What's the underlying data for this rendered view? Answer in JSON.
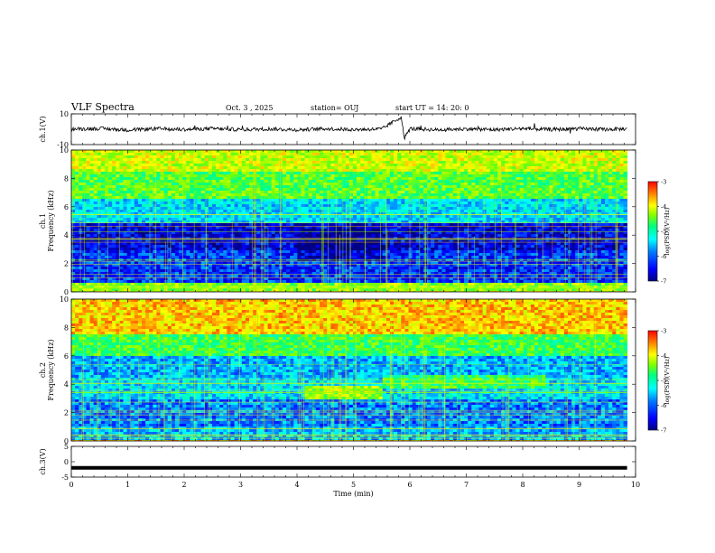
{
  "header": {
    "title": "VLF Spectra",
    "date": "Oct. 3 , 2025",
    "station": "station= OUJ",
    "start": "start UT = 14: 20: 0"
  },
  "chart_data": [
    {
      "type": "line",
      "id": "ch1-waveform",
      "ylabel": "ch.1(V)",
      "ylim": [
        -10,
        10
      ],
      "yticks": [
        "10",
        "-10"
      ],
      "xlim": [
        0,
        10
      ],
      "description_series": [
        {
          "x": [
            0,
            0.5,
            1,
            1.5,
            2,
            2.5,
            3,
            3.5,
            4,
            4.5,
            5,
            5.5,
            5.85,
            5.9,
            6,
            6.5,
            7,
            7.5,
            8,
            8.5,
            9,
            9.5,
            9.8
          ],
          "y": [
            0,
            0.5,
            -0.5,
            0.3,
            -0.2,
            0.4,
            -0.3,
            0.2,
            -0.4,
            0.3,
            -0.2,
            0.1,
            8,
            -6,
            0.3,
            -0.4,
            0.2,
            -0.3,
            0.4,
            -0.2,
            0.3,
            -0.1,
            0.2
          ]
        }
      ]
    },
    {
      "type": "heatmap",
      "id": "ch1-spectrogram",
      "ylabel": "ch.1\nFrequency (kHz)",
      "ylabel_line1": "ch.1",
      "ylabel_line2": "Frequency (kHz)",
      "ylim": [
        0,
        10
      ],
      "yticks": [
        "0",
        "2",
        "4",
        "6",
        "8",
        "10"
      ],
      "xlim": [
        0,
        10
      ],
      "colorbar": {
        "label": "log(PSD)(V²/Hz)",
        "range": [
          -7,
          -3
        ],
        "ticks": [
          "-3",
          "-4",
          "-5",
          "-6",
          "-7"
        ]
      },
      "bands": [
        {
          "from": 0,
          "to": 0.6,
          "level": -4.5
        },
        {
          "from": 0.6,
          "to": 3.0,
          "level": -6.3
        },
        {
          "from": 3.0,
          "to": 4.8,
          "level": -6.6
        },
        {
          "from": 4.8,
          "to": 6.5,
          "level": -5.6
        },
        {
          "from": 6.5,
          "to": 8.5,
          "level": -4.7
        },
        {
          "from": 8.5,
          "to": 10,
          "level": -4.2
        }
      ]
    },
    {
      "type": "heatmap",
      "id": "ch2-spectrogram",
      "ylabel": "ch.2\nFrequency (kHz)",
      "ylabel_line1": "ch.2",
      "ylabel_line2": "Frequency (kHz)",
      "ylim": [
        0,
        10
      ],
      "yticks": [
        "0",
        "2",
        "4",
        "6",
        "8",
        "10"
      ],
      "xlim": [
        0,
        10
      ],
      "colorbar": {
        "label": "log(PSD)(V²/Hz)",
        "range": [
          -7,
          -3
        ],
        "ticks": [
          "-3",
          "-4",
          "-5",
          "-6",
          "-7"
        ]
      },
      "bands": [
        {
          "from": 0,
          "to": 1.0,
          "level": -5.8
        },
        {
          "from": 1.0,
          "to": 3.0,
          "level": -6.0
        },
        {
          "from": 3.0,
          "to": 4.5,
          "level": -5.6
        },
        {
          "from": 4.5,
          "to": 6.0,
          "level": -5.8
        },
        {
          "from": 6.0,
          "to": 7.5,
          "level": -4.8
        },
        {
          "from": 7.5,
          "to": 10,
          "level": -3.8
        }
      ]
    },
    {
      "type": "line",
      "id": "ch3-waveform",
      "ylabel": "ch.3(V)",
      "ylim": [
        -5,
        5
      ],
      "yticks": [
        "5",
        "0",
        "-5"
      ],
      "xlabel": "Time (min)",
      "xlim": [
        0,
        10
      ],
      "xticks": [
        "0",
        "1",
        "2",
        "3",
        "4",
        "5",
        "6",
        "7",
        "8",
        "9",
        "10"
      ],
      "constant_value": -2
    }
  ],
  "colors": {
    "background": "#ffffff",
    "axes": "#000000",
    "colormap": [
      "#000080",
      "#0000ff",
      "#0080ff",
      "#00ffff",
      "#00ff80",
      "#80ff00",
      "#ffff00",
      "#ff8000",
      "#ff0000"
    ]
  }
}
